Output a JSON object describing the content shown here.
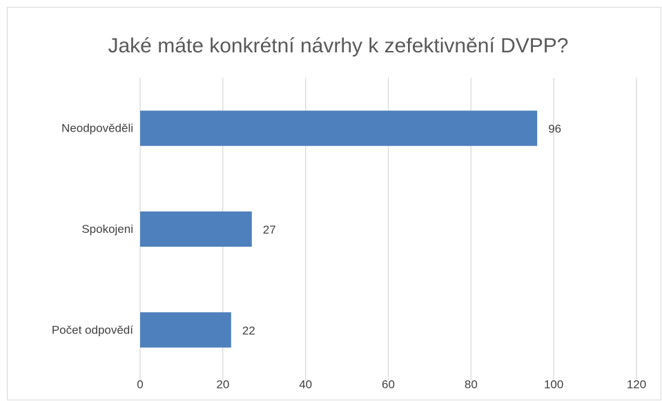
{
  "chart_data": {
    "type": "bar",
    "orientation": "horizontal",
    "title": "Jaké máte konkrétní návrhy k zefektivnění DVPP?",
    "categories": [
      "Neodpověděli",
      "Spokojeni",
      "Počet odpovědí"
    ],
    "values": [
      96,
      27,
      22
    ],
    "color": "#4e80bd",
    "xlim": [
      0,
      120
    ],
    "xticks": [
      0,
      20,
      40,
      60,
      80,
      100,
      120
    ],
    "grid": true,
    "data_labels": true
  }
}
